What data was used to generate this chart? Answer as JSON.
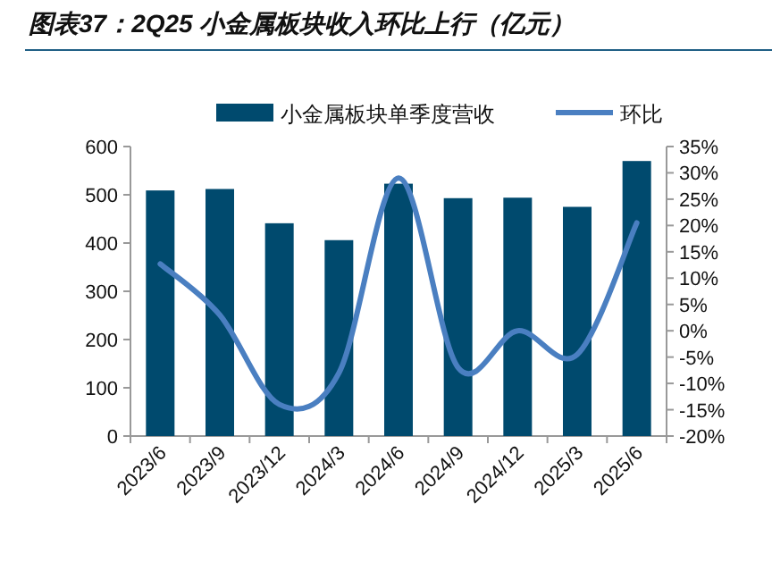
{
  "chart_data": {
    "type": "bar",
    "title": "图表37：2Q25 小金属板块收入环比上行（亿元）",
    "categories": [
      "2023/6",
      "2023/9",
      "2023/12",
      "2024/3",
      "2024/6",
      "2024/9",
      "2024/12",
      "2025/3",
      "2025/6"
    ],
    "series": [
      {
        "name": "小金属板块单季度营收",
        "color": "#004a6e",
        "values": [
          509,
          512,
          441,
          406,
          523,
          493,
          494,
          475,
          570
        ]
      },
      {
        "name": "环比",
        "type": "line",
        "axis": "y2",
        "color": "#4a7fc1",
        "values": [
          12.7,
          3,
          -14,
          -8,
          29,
          -7,
          0,
          -4.5,
          20.5
        ]
      }
    ],
    "ylim": [
      0,
      600
    ],
    "yticks": [
      0,
      100,
      200,
      300,
      400,
      500,
      600
    ],
    "y2lim": [
      -20,
      35
    ],
    "y2ticks": [
      {
        "value": 35,
        "label": "35%"
      },
      {
        "value": 30,
        "label": "30%"
      },
      {
        "value": 25,
        "label": "25%"
      },
      {
        "value": 20,
        "label": "20%"
      },
      {
        "value": 15,
        "label": "15%"
      },
      {
        "value": 10,
        "label": "10%"
      },
      {
        "value": 5,
        "label": "5%"
      },
      {
        "value": 0,
        "label": "0%"
      },
      {
        "value": -5,
        "label": "-5%"
      },
      {
        "value": -10,
        "label": "-10%"
      },
      {
        "value": -15,
        "label": "-15%"
      },
      {
        "value": -20,
        "label": "-20%"
      }
    ],
    "legend": "top"
  }
}
